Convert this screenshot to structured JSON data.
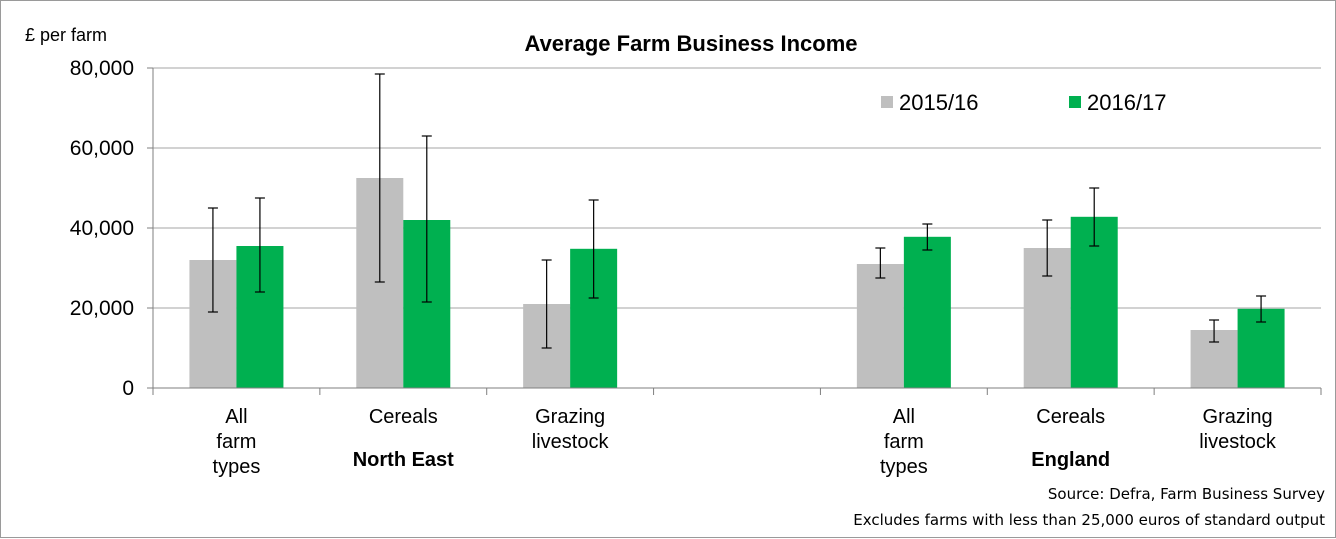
{
  "chart_data": {
    "type": "bar",
    "title": "Average Farm Business Income",
    "ylabel": "£ per farm",
    "xlabel": "",
    "ylim": [
      0,
      80000
    ],
    "yticks": [
      "0",
      "20,000",
      "40,000",
      "60,000",
      "80,000"
    ],
    "grid": true,
    "legend_position": "top-right",
    "categories": [
      [
        "All",
        "farm",
        "types"
      ],
      [
        "Cereals"
      ],
      [
        "Grazing",
        "livestock"
      ],
      [],
      [
        "All",
        "farm",
        "types"
      ],
      [
        "Cereals"
      ],
      [
        "Grazing",
        "livestock"
      ]
    ],
    "groups": [
      {
        "label": "North East",
        "span": [
          0,
          2
        ]
      },
      {
        "label": "England",
        "span": [
          4,
          6
        ]
      }
    ],
    "series": [
      {
        "name": "2015/16",
        "color": "#bfbfbf",
        "values": [
          32000,
          52500,
          21000,
          null,
          31000,
          35000,
          14500
        ],
        "error_low": [
          19000,
          26500,
          10000,
          null,
          27500,
          28000,
          11500
        ],
        "error_high": [
          45000,
          78500,
          32000,
          null,
          35000,
          42000,
          17000
        ]
      },
      {
        "name": "2016/17",
        "color": "#00b050",
        "values": [
          35500,
          42000,
          34800,
          null,
          37800,
          42800,
          19800
        ],
        "error_low": [
          24000,
          21500,
          22500,
          null,
          34500,
          35500,
          16500
        ],
        "error_high": [
          47500,
          63000,
          47000,
          null,
          41000,
          50000,
          23000
        ]
      }
    ],
    "notes": [
      "Source: Defra, Farm Business Survey",
      "Excludes farms with less than 25,000 euros of standard output"
    ]
  }
}
